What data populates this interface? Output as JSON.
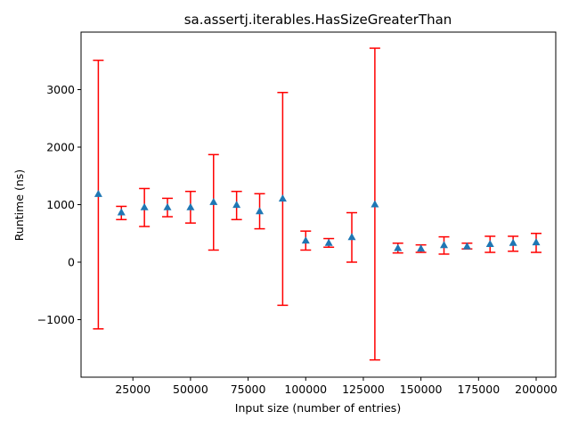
{
  "chart_data": {
    "type": "scatter",
    "title": "sa.assertj.iterables.HasSizeGreaterThan",
    "xlabel": "Input size (number of entries)",
    "ylabel": "Runtime (ns)",
    "xlim": [
      2500,
      208500
    ],
    "ylim": [
      -2000,
      4000
    ],
    "xticks": [
      25000,
      50000,
      75000,
      100000,
      125000,
      150000,
      175000,
      200000
    ],
    "yticks": [
      -1000,
      0,
      1000,
      2000,
      3000
    ],
    "grid": false,
    "legend": "none",
    "colors": {
      "marker": "#1f77b4",
      "errorbar": "#ff0000"
    },
    "series": [
      {
        "x": [
          10000,
          20000,
          30000,
          40000,
          50000,
          60000,
          70000,
          80000,
          90000,
          100000,
          110000,
          120000,
          130000,
          140000,
          150000,
          160000,
          170000,
          180000,
          190000,
          200000
        ],
        "y": [
          1180,
          860,
          950,
          950,
          950,
          1040,
          990,
          880,
          1100,
          370,
          330,
          430,
          1000,
          240,
          230,
          290,
          270,
          310,
          330,
          340
        ],
        "err_low": [
          -1160,
          740,
          620,
          790,
          680,
          210,
          740,
          580,
          -750,
          210,
          260,
          0,
          -1700,
          160,
          170,
          140,
          230,
          170,
          190,
          170
        ],
        "err_high": [
          3510,
          970,
          1280,
          1110,
          1230,
          1870,
          1230,
          1190,
          2950,
          540,
          410,
          860,
          3720,
          330,
          300,
          440,
          330,
          450,
          450,
          500
        ]
      }
    ]
  }
}
